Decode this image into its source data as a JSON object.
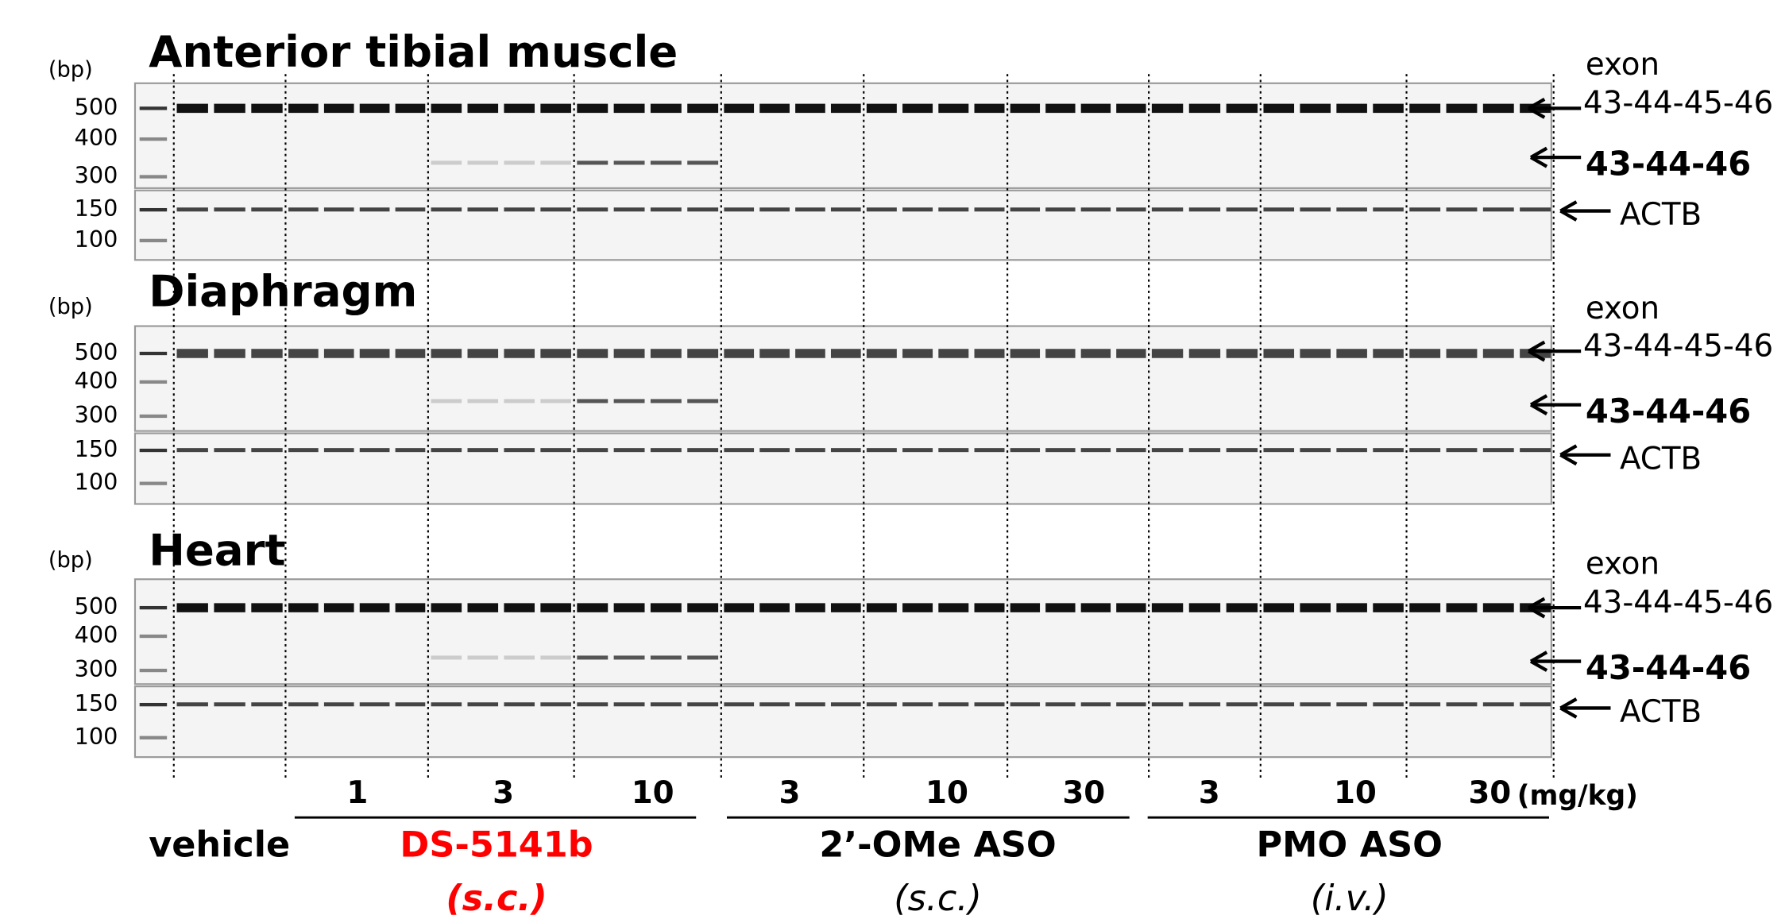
{
  "panels": [
    {
      "title": "Anterior tibial muscle",
      "unit": "(bp)",
      "ladder": [
        "500",
        "400",
        "300",
        "150",
        "100"
      ],
      "exon_label": "exon",
      "full_band": "43-44-45-46",
      "skip_band": "43-44-46",
      "control_band": "ACTB"
    },
    {
      "title": "Diaphragm",
      "unit": "(bp)",
      "ladder": [
        "500",
        "400",
        "300",
        "150",
        "100"
      ],
      "exon_label": "exon",
      "full_band": "43-44-45-46",
      "skip_band": "43-44-46",
      "control_band": "ACTB"
    },
    {
      "title": "Heart",
      "unit": "(bp)",
      "ladder": [
        "500",
        "400",
        "300",
        "150",
        "100"
      ],
      "exon_label": "exon",
      "full_band": "43-44-45-46",
      "skip_band": "43-44-46",
      "control_band": "ACTB"
    }
  ],
  "doses": [
    "1",
    "3",
    "10",
    "3",
    "10",
    "30",
    "3",
    "10",
    "30"
  ],
  "dose_unit": "(mg/kg)",
  "groups": [
    {
      "name": "vehicle"
    },
    {
      "name": "DS-5141b",
      "route": "(s.c.)"
    },
    {
      "name": "2’-OMe ASO",
      "route": "(s.c.)"
    },
    {
      "name": "PMO ASO",
      "route": "(i.v.)"
    }
  ]
}
